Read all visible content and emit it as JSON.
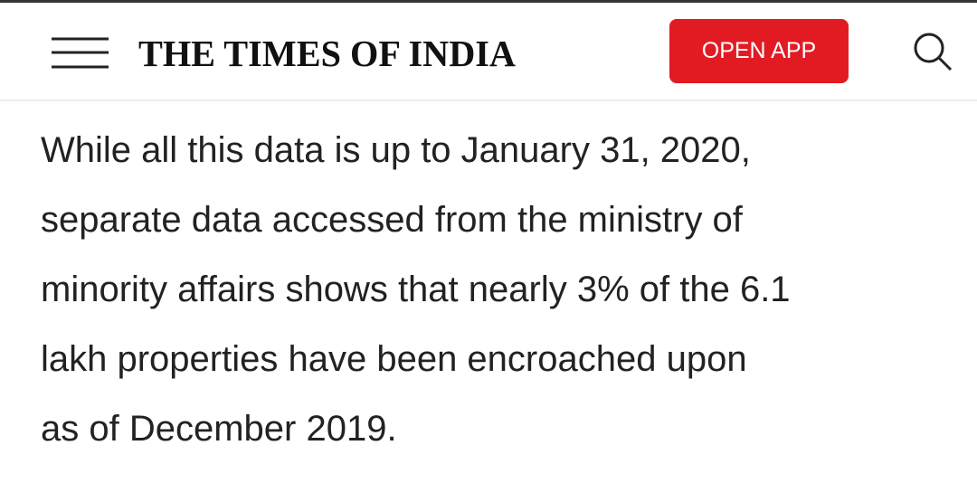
{
  "header": {
    "title": "THE TIMES OF INDIA",
    "button": "OPEN APP"
  },
  "article": {
    "lines": [
      "While all this data is up to January 31, 2020,",
      "separate data accessed from the ministry of",
      "minority affairs shows that nearly 3% of the 6.1",
      "lakh properties have been encroached upon",
      "as of December 2019."
    ]
  }
}
